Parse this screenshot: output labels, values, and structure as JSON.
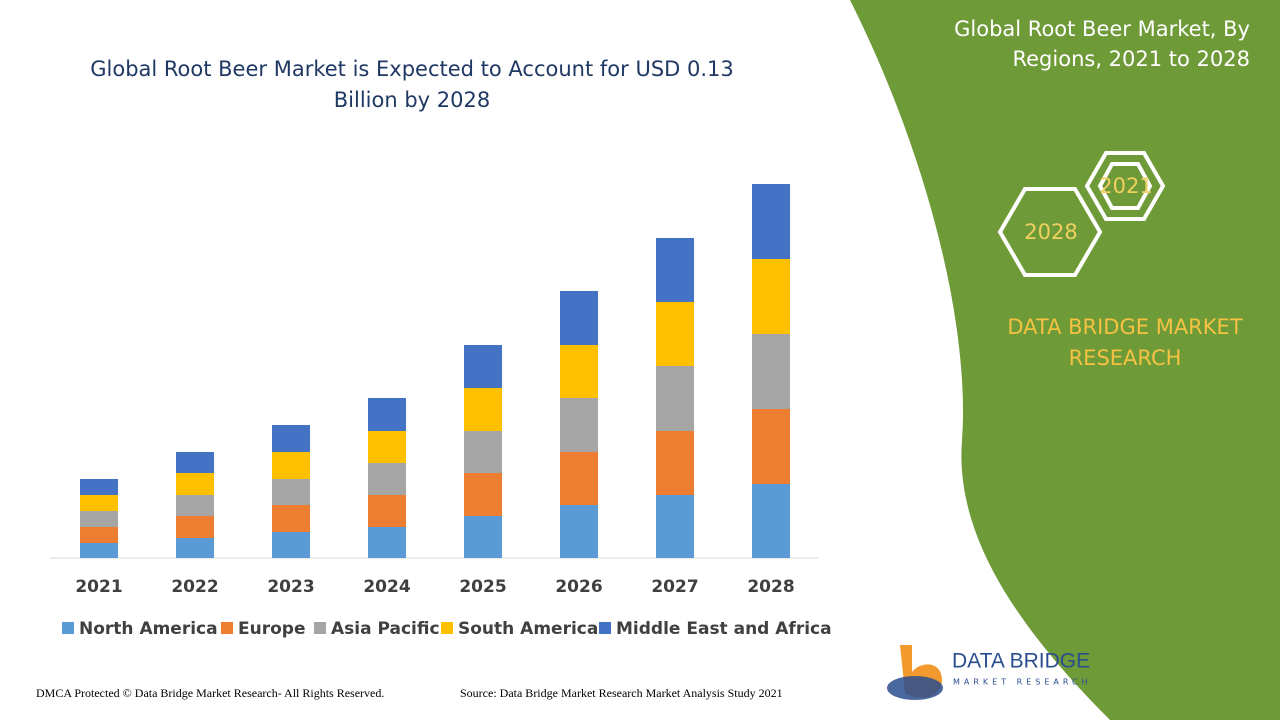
{
  "chart_data": {
    "type": "stacked-bar",
    "title": "Global Root Beer Market is Expected to Account for USD 0.13 Billion by 2028",
    "categories": [
      "2021",
      "2022",
      "2023",
      "2024",
      "2025",
      "2026",
      "2027",
      "2028"
    ],
    "series": [
      {
        "name": "North America",
        "color": "#5b9bd5",
        "values": [
          15,
          20,
          26,
          31,
          42,
          53,
          63,
          74
        ]
      },
      {
        "name": "Europe",
        "color": "#ed7d31",
        "values": [
          16,
          22,
          27,
          32,
          43,
          53,
          64,
          75
        ]
      },
      {
        "name": "Asia Pacific",
        "color": "#a5a5a5",
        "values": [
          16,
          21,
          26,
          32,
          42,
          54,
          65,
          75
        ]
      },
      {
        "name": "South America",
        "color": "#ffc000",
        "values": [
          16,
          22,
          27,
          32,
          43,
          53,
          64,
          75
        ]
      },
      {
        "name": "Middle East and Africa",
        "color": "#4472c4",
        "values": [
          16,
          21,
          27,
          33,
          43,
          54,
          64,
          75
        ]
      }
    ]
  },
  "side_panel": {
    "title": "Global Root Beer Market, By Regions, 2021 to 2028",
    "badges": [
      "2021",
      "2028"
    ],
    "brand": "DATA BRIDGE MARKET RESEARCH"
  },
  "logo": {
    "name": "DATA BRIDGE",
    "tagline": "MARKET RESEARCH"
  },
  "footer": {
    "copyright": "DMCA Protected © Data Bridge Market Research- All Rights Reserved.",
    "source": "Source: Data Bridge Market Research Market Analysis Study 2021"
  }
}
